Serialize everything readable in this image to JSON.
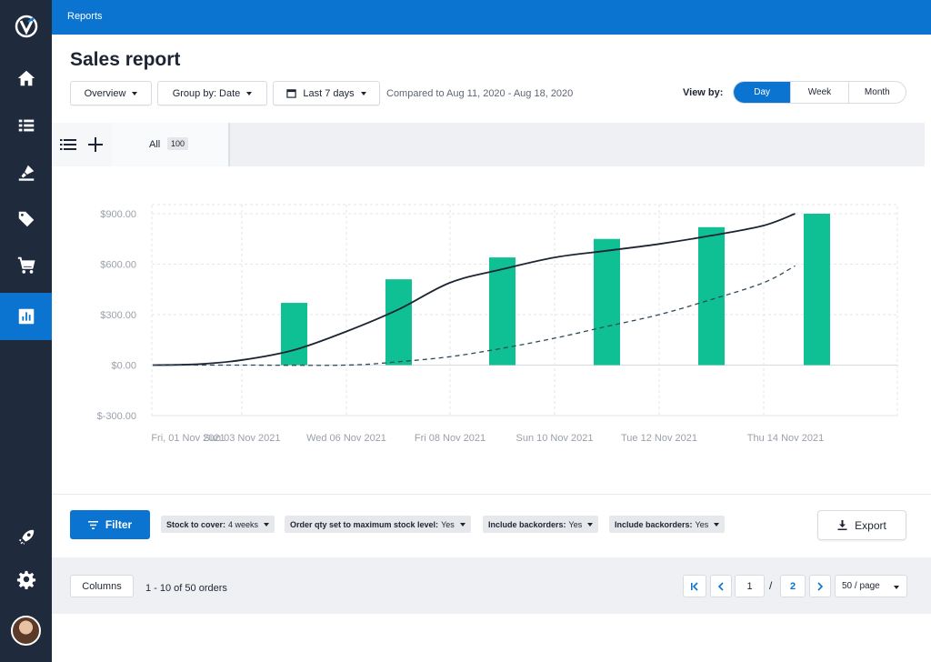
{
  "topbar": {
    "breadcrumb": "Reports"
  },
  "page": {
    "title": "Sales report",
    "compared": "Compared to Aug 11, 2020 - Aug 18, 2020"
  },
  "toolbar": {
    "overview": "Overview",
    "group_by": "Group by: Date",
    "date_range": "Last 7 days",
    "view_by_label": "View by:",
    "view_options": [
      "Day",
      "Week",
      "Month"
    ],
    "view_selected": "Day"
  },
  "tabs": {
    "all_label": "All",
    "all_count": "100"
  },
  "sidebar": {
    "icons": [
      "home-icon",
      "list-icon",
      "stamp-icon",
      "tag-icon",
      "cart-icon",
      "reports-icon",
      "rocket-icon",
      "gear-icon"
    ],
    "active": "reports-icon"
  },
  "colors": {
    "brand": "#0b74d1",
    "sidebar": "#1f2a3c",
    "bar": "#10c095",
    "line": "#1d2433",
    "dashed": "#2c4a56"
  },
  "chart_data": {
    "type": "bar",
    "categories": [
      "Fri, 01 Nov 2021",
      "Sun 03 Nov 2021",
      "Wed 06 Nov 2021",
      "Fri 08 Nov 2021",
      "Sun 10 Nov 2021",
      "Tue 12 Nov 2021",
      "Thu 14 Nov 2021"
    ],
    "y_tick_labels": [
      "$900.00",
      "$600.00",
      "$300.00",
      "$0.00",
      "$-300.00"
    ],
    "y_ticks": [
      900,
      600,
      300,
      0,
      -300
    ],
    "ylim": [
      -300,
      900
    ],
    "grid": true,
    "series": [
      {
        "type": "bar",
        "values": [
          0,
          370,
          510,
          640,
          750,
          820,
          900
        ]
      },
      {
        "type": "line",
        "x": [
          0,
          0.5,
          1,
          1.5,
          2,
          2.5,
          3,
          3.5,
          4,
          4.5,
          5,
          5.5,
          6,
          6.3
        ],
        "values": [
          0,
          5,
          30,
          90,
          200,
          330,
          490,
          570,
          640,
          680,
          720,
          770,
          830,
          900
        ]
      },
      {
        "type": "line",
        "style": "dashed",
        "x": [
          0,
          1,
          2,
          2.5,
          3,
          3.5,
          4,
          4.5,
          5,
          5.5,
          6,
          6.3
        ],
        "values": [
          0,
          0,
          0,
          20,
          50,
          100,
          160,
          230,
          300,
          390,
          490,
          590
        ]
      }
    ]
  },
  "filters": {
    "filter_label": "Filter",
    "chips": [
      {
        "key": "Stock to cover:",
        "value": "4 weeks"
      },
      {
        "key": "Order qty set to maximum stock level:",
        "value": "Yes"
      },
      {
        "key": "Include backorders:",
        "value": "Yes"
      },
      {
        "key": "Include backorders:",
        "value": "Yes"
      }
    ],
    "export_label": "Export"
  },
  "footer": {
    "columns_label": "Columns",
    "range_text": "1 - 10 of 50 orders",
    "page_current": "1",
    "page_separator": "/",
    "page_total": "2",
    "per_page": "50 / page"
  }
}
